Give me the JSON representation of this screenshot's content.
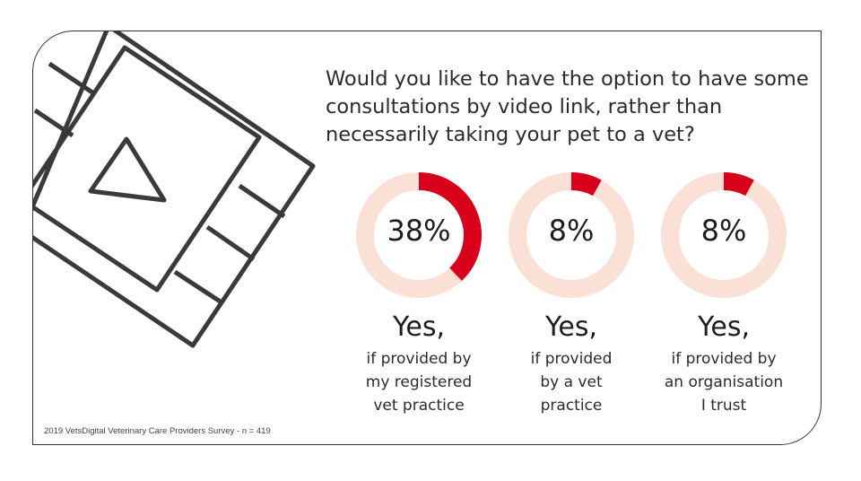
{
  "question": "Would you like to have the option to have some consultations by video link, rather than necessarily taking your pet to a vet?",
  "source_note": "2019 VetsDigital Veterinary Care Providers Survey - n = 419",
  "colors": {
    "filled": "#d9001b",
    "track": "#fbe0d6",
    "outline": "#3a3a3a"
  },
  "decoration_icon": "video-film-strip-with-play-icon",
  "chart_data": {
    "type": "donut",
    "unit": "%",
    "items": [
      {
        "value": 38,
        "label": "38%",
        "heading": "Yes,",
        "caption": "if provided by\nmy registered\nvet practice"
      },
      {
        "value": 8,
        "label": "8%",
        "heading": "Yes,",
        "caption": "if provided\nby a vet\npractice"
      },
      {
        "value": 8,
        "label": "8%",
        "heading": "Yes,",
        "caption": "if provided by\nan organisation\nI trust"
      }
    ]
  }
}
